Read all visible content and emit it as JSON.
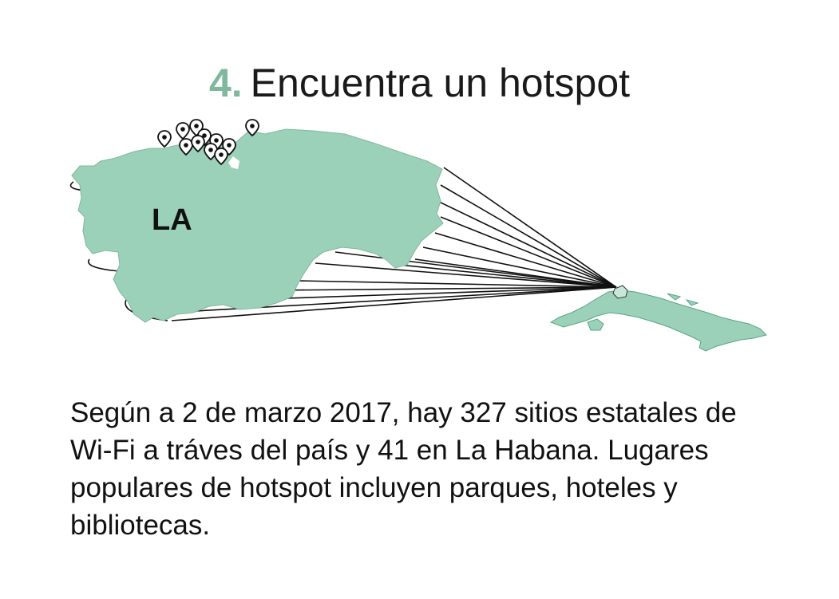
{
  "header": {
    "step_number": "4.",
    "title": "Encuentra un hotspot"
  },
  "map": {
    "region_label": "LA",
    "land_color": "#9bd1b8",
    "highlight_color": "#c9e7d8",
    "outline_color": "#5aa585",
    "step_color": "#7fb89d",
    "pin_icon": "map-pin-icon"
  },
  "description": "Según a 2 de marzo 2017, hay 327 sitios estatales de Wi-Fi a tráves del país y 41 en La Habana. Lugares populares de hotspot incluyen parques, hoteles y bibliotecas."
}
